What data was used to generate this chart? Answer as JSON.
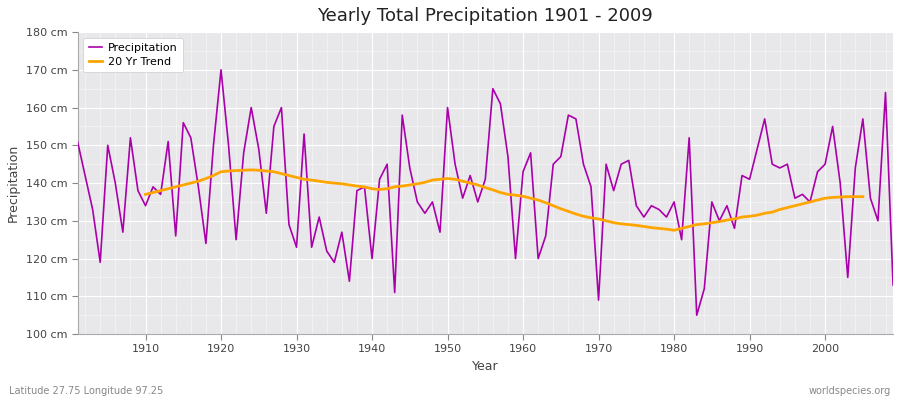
{
  "title": "Yearly Total Precipitation 1901 - 2009",
  "xlabel": "Year",
  "ylabel": "Precipitation",
  "lat_lon_text": "Latitude 27.75 Longitude 97.25",
  "watermark": "worldspecies.org",
  "precip_color": "#aa00aa",
  "trend_color": "#ffa500",
  "fig_bg_color": "#ffffff",
  "plot_bg_color": "#e8e8eb",
  "ylim": [
    100,
    180
  ],
  "ytick_step": 10,
  "years": [
    1901,
    1902,
    1903,
    1904,
    1905,
    1906,
    1907,
    1908,
    1909,
    1910,
    1911,
    1912,
    1913,
    1914,
    1915,
    1916,
    1917,
    1918,
    1919,
    1920,
    1921,
    1922,
    1923,
    1924,
    1925,
    1926,
    1927,
    1928,
    1929,
    1930,
    1931,
    1932,
    1933,
    1934,
    1935,
    1936,
    1937,
    1938,
    1939,
    1940,
    1941,
    1942,
    1943,
    1944,
    1945,
    1946,
    1947,
    1948,
    1949,
    1950,
    1951,
    1952,
    1953,
    1954,
    1955,
    1956,
    1957,
    1958,
    1959,
    1960,
    1961,
    1962,
    1963,
    1964,
    1965,
    1966,
    1967,
    1968,
    1969,
    1970,
    1971,
    1972,
    1973,
    1974,
    1975,
    1976,
    1977,
    1978,
    1979,
    1980,
    1981,
    1982,
    1983,
    1984,
    1985,
    1986,
    1987,
    1988,
    1989,
    1990,
    1991,
    1992,
    1993,
    1994,
    1995,
    1996,
    1997,
    1998,
    1999,
    2000,
    2001,
    2002,
    2003,
    2004,
    2005,
    2006,
    2007,
    2008,
    2009
  ],
  "precip": [
    151,
    142,
    133,
    119,
    150,
    140,
    127,
    152,
    138,
    134,
    139,
    137,
    151,
    126,
    156,
    152,
    139,
    124,
    150,
    170,
    150,
    125,
    148,
    160,
    149,
    132,
    155,
    160,
    129,
    123,
    153,
    123,
    131,
    122,
    119,
    127,
    114,
    138,
    139,
    120,
    141,
    145,
    111,
    158,
    144,
    135,
    132,
    135,
    127,
    160,
    145,
    136,
    142,
    135,
    141,
    165,
    161,
    147,
    120,
    143,
    148,
    120,
    126,
    145,
    147,
    158,
    157,
    145,
    139,
    109,
    145,
    138,
    145,
    146,
    134,
    131,
    134,
    133,
    131,
    135,
    125,
    152,
    105,
    112,
    135,
    130,
    134,
    128,
    142,
    141,
    149,
    157,
    145,
    144,
    145,
    136,
    137,
    135,
    143,
    145,
    155,
    140,
    115,
    144,
    157,
    136,
    130,
    164,
    113
  ],
  "trend_years": [
    1910,
    1911,
    1912,
    1913,
    1914,
    1915,
    1916,
    1917,
    1918,
    1919,
    1920,
    1921,
    1922,
    1923,
    1924,
    1925,
    1926,
    1927,
    1928,
    1929,
    1930,
    1931,
    1932,
    1933,
    1934,
    1935,
    1936,
    1937,
    1938,
    1939,
    1940,
    1941,
    1942,
    1943,
    1944,
    1945,
    1946,
    1947,
    1948,
    1949,
    1950,
    1951,
    1952,
    1953,
    1954,
    1955,
    1956,
    1957,
    1958,
    1959,
    1960,
    1961,
    1962,
    1963,
    1964,
    1965,
    1966,
    1967,
    1968,
    1969,
    1970,
    1971,
    1972,
    1973,
    1974,
    1975,
    1976,
    1977,
    1978,
    1979,
    1980,
    1981,
    1982,
    1983,
    1984,
    1985,
    1986,
    1987,
    1988,
    1989,
    1990,
    1991,
    1992,
    1993,
    1994,
    1995,
    1996,
    1997,
    1998,
    1999,
    2000,
    2001,
    2002,
    2003,
    2004,
    2005
  ],
  "trend": [
    137.0,
    137.5,
    138.0,
    138.5,
    139.0,
    139.5,
    140.0,
    140.5,
    141.2,
    142.0,
    143.0,
    143.2,
    143.3,
    143.4,
    143.5,
    143.4,
    143.2,
    143.0,
    142.5,
    142.0,
    141.5,
    141.0,
    140.8,
    140.5,
    140.2,
    140.0,
    139.8,
    139.5,
    139.2,
    139.0,
    138.5,
    138.3,
    138.5,
    139.0,
    139.2,
    139.5,
    139.8,
    140.2,
    140.8,
    141.0,
    141.2,
    141.0,
    140.5,
    140.0,
    139.5,
    138.8,
    138.2,
    137.5,
    137.0,
    136.8,
    136.5,
    136.0,
    135.5,
    134.8,
    134.0,
    133.2,
    132.5,
    131.8,
    131.2,
    130.8,
    130.5,
    130.0,
    129.5,
    129.2,
    129.0,
    128.8,
    128.5,
    128.2,
    128.0,
    127.8,
    127.5,
    128.0,
    128.5,
    129.0,
    129.2,
    129.5,
    129.8,
    130.2,
    130.5,
    131.0,
    131.2,
    131.5,
    132.0,
    132.3,
    133.0,
    133.5,
    134.0,
    134.5,
    135.0,
    135.5,
    136.0,
    136.2,
    136.3,
    136.4,
    136.4,
    136.4
  ]
}
